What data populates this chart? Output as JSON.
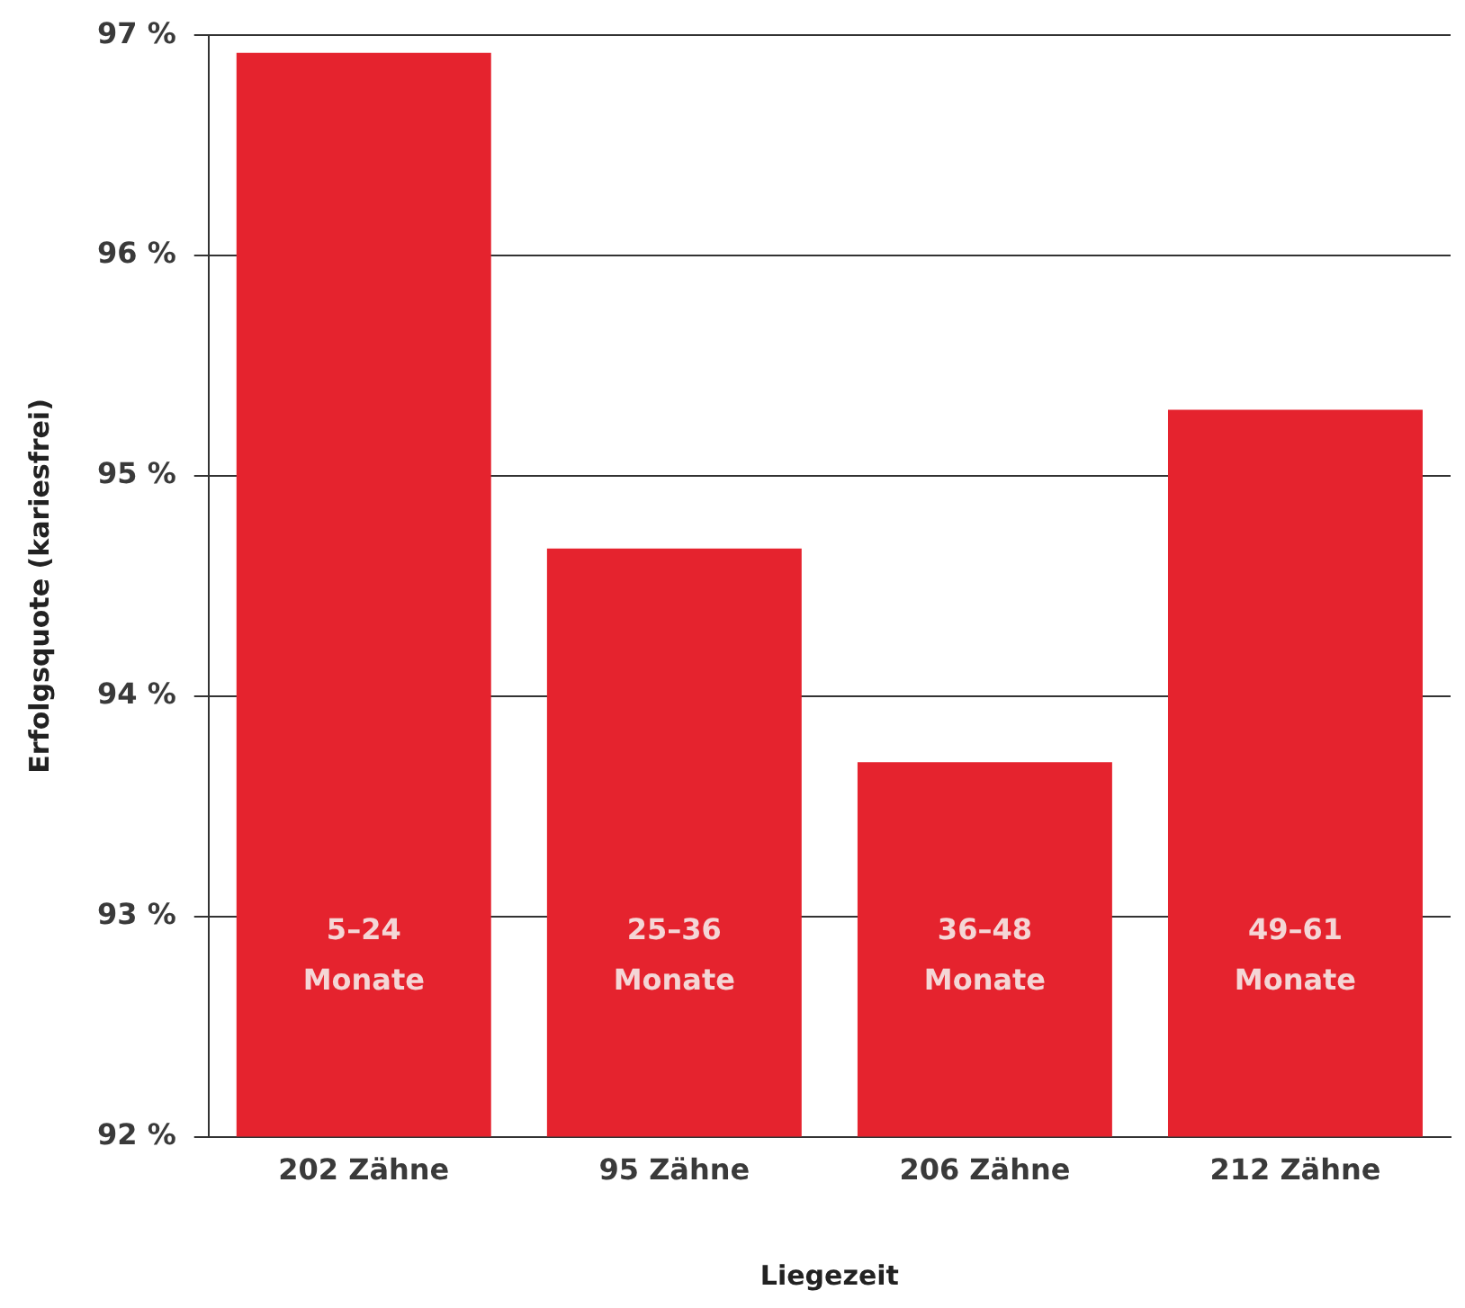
{
  "chart_data": {
    "type": "bar",
    "xlabel": "Liegezeit",
    "ylabel": "Erfolgsquote (kariesfrei)",
    "categories": [
      "202 Zähne",
      "95 Zähne",
      "206 Zähne",
      "212 Zähne"
    ],
    "values": [
      96.92,
      94.67,
      93.7,
      95.3
    ],
    "color": "#e5232e",
    "ylim": [
      92,
      97
    ],
    "yticks": [
      {
        "value": 92,
        "label": "92 %"
      },
      {
        "value": 93,
        "label": "93 %"
      },
      {
        "value": 94,
        "label": "94 %"
      },
      {
        "value": 95,
        "label": "95 %"
      },
      {
        "value": 96,
        "label": "96 %"
      },
      {
        "value": 97,
        "label": "97 %"
      }
    ],
    "grid": "y",
    "annotations": [
      "5–24\nMonate",
      "25–36\nMonate",
      "36–48\nMonate",
      "49–61\nMonate"
    ]
  }
}
